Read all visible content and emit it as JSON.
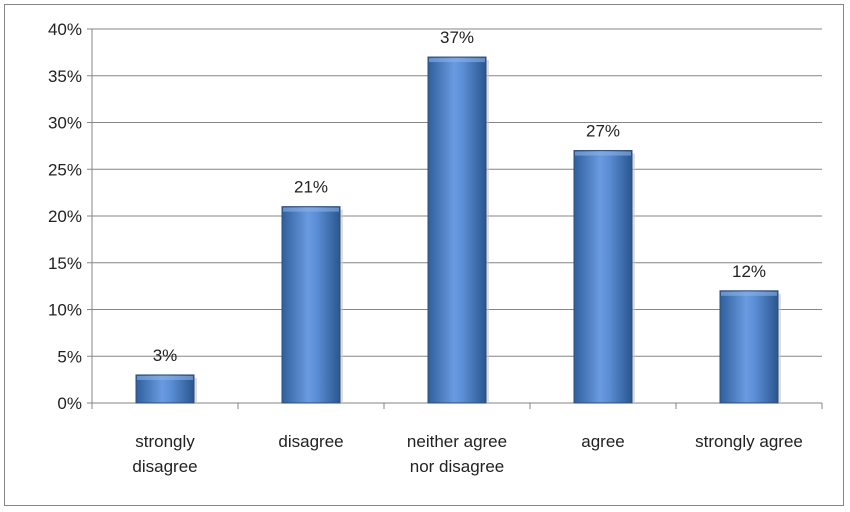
{
  "chart_data": {
    "type": "bar",
    "categories": [
      [
        "strongly",
        "disagree"
      ],
      [
        "disagree"
      ],
      [
        "neither agree",
        "nor disagree"
      ],
      [
        "agree"
      ],
      [
        "strongly agree"
      ]
    ],
    "values": [
      3,
      21,
      37,
      27,
      12
    ],
    "data_labels": [
      "3%",
      "21%",
      "37%",
      "27%",
      "12%"
    ],
    "yticks": [
      "0%",
      "5%",
      "10%",
      "15%",
      "20%",
      "25%",
      "30%",
      "35%",
      "40%"
    ],
    "ylim": [
      0,
      40
    ],
    "grid": true,
    "legend": "none",
    "bar_color": "#4f81bd",
    "bar_color_dark": "#2c5a93",
    "bar_color_light": "#8cb3e6"
  }
}
